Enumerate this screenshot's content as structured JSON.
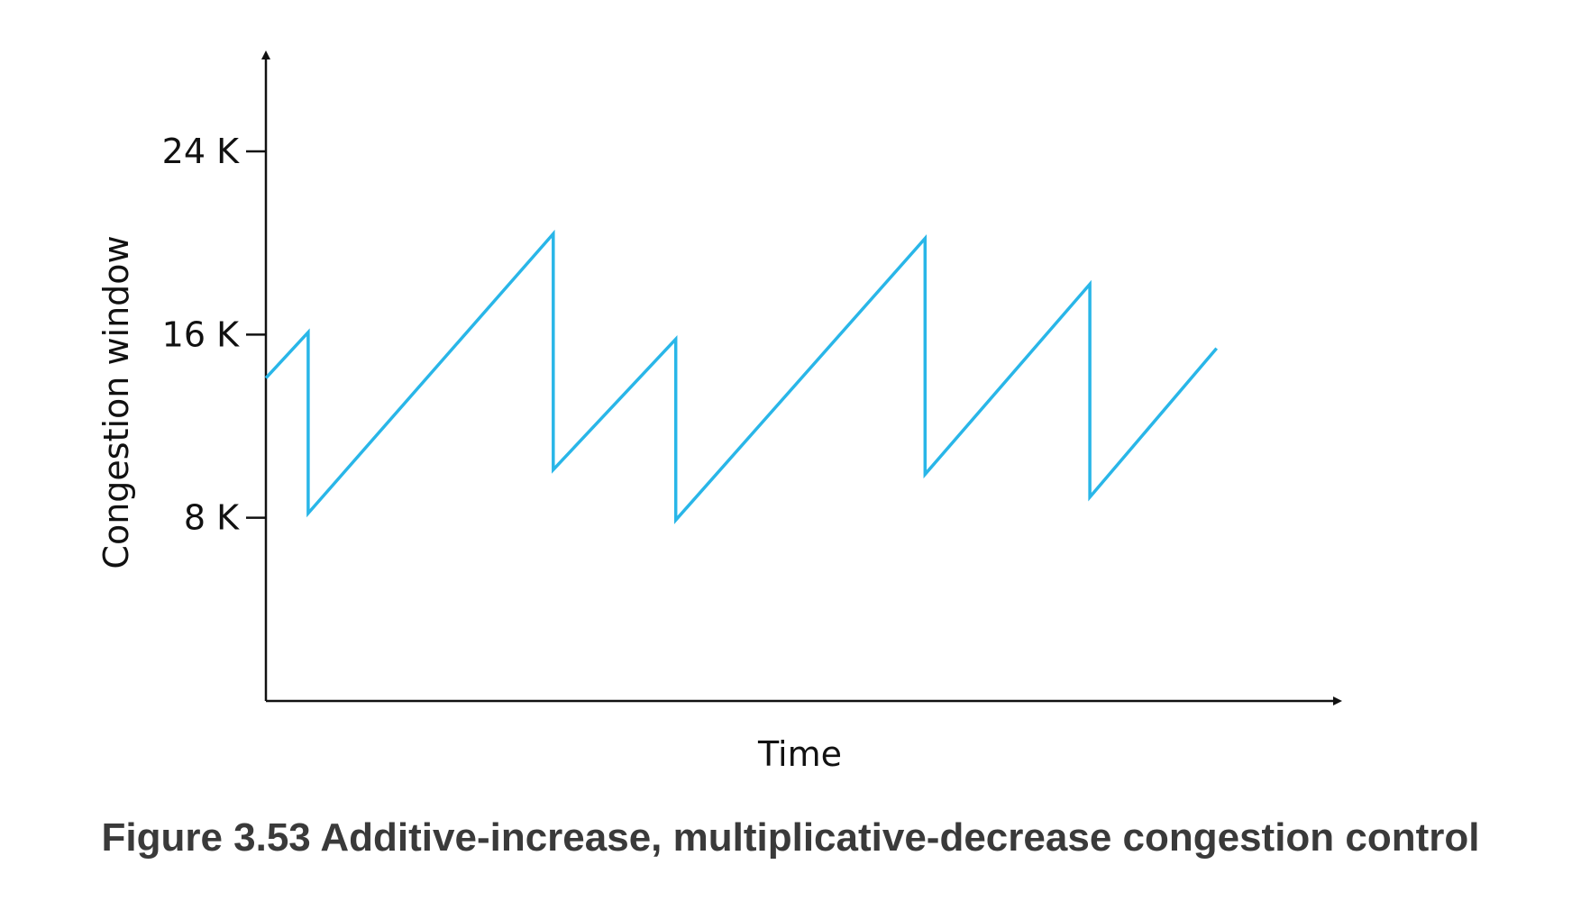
{
  "caption": "Figure 3.53 Additive-increase, multiplicative-decrease congestion control",
  "colors": {
    "line": "#29b6e8",
    "axis": "#111111",
    "caption": "#3a3a3a"
  },
  "chart_data": {
    "type": "line",
    "title": "",
    "xlabel": "Time",
    "ylabel": "Congestion window",
    "x_ticks_shown": false,
    "y_ticks": [
      {
        "value": 8,
        "label": "8 K"
      },
      {
        "value": 16,
        "label": "16 K"
      },
      {
        "value": 24,
        "label": "24 K"
      }
    ],
    "ylim": [
      0,
      30
    ],
    "xlim": [
      0,
      24
    ],
    "grid": false,
    "legend": "none",
    "series": [
      {
        "x": [
          0,
          1.0,
          1.0,
          6.8,
          6.8,
          9.7,
          9.7,
          15.6,
          15.6,
          19.5,
          19.5,
          22.5
        ],
        "y": [
          14.1,
          16.1,
          8.2,
          20.4,
          10.1,
          15.8,
          7.9,
          20.2,
          9.9,
          18.2,
          8.9,
          15.4
        ]
      }
    ]
  }
}
